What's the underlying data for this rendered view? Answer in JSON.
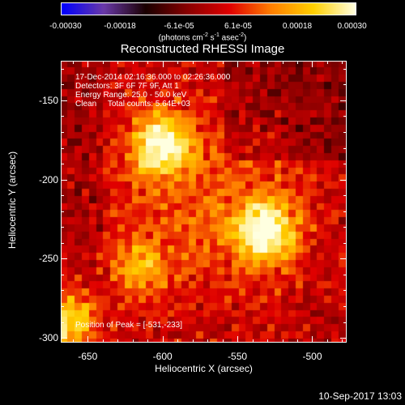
{
  "colorbar": {
    "ticks": [
      "-0.00030",
      "-0.00018",
      "-6.1e-05",
      "6.1e-05",
      "0.00018",
      "0.00030"
    ],
    "unit_prefix": "(photons cm",
    "unit_exp1": "-2",
    "unit_mid1": " s",
    "unit_exp2": "-1",
    "unit_mid2": " asec",
    "unit_exp3": "-2",
    "unit_suffix": ")",
    "min": -0.0003,
    "max": 0.0003,
    "colors": [
      "#0000ff",
      "#6a3aa8",
      "#1a0000",
      "#8a0000",
      "#e00000",
      "#ff8000",
      "#ffd000",
      "#ffffe0"
    ]
  },
  "chart_data": {
    "type": "heatmap",
    "title": "Reconstructed RHESSI Image",
    "xlabel": "Heliocentric X (arcsec)",
    "ylabel": "Heliocentric Y (arcsec)",
    "xlim": [
      -668,
      -477
    ],
    "ylim": [
      -303,
      -125
    ],
    "xticks": [
      "-650",
      "-600",
      "-550",
      "-500"
    ],
    "xtick_values": [
      -650,
      -600,
      -550,
      -500
    ],
    "yticks": [
      "-150",
      "-200",
      "-250",
      "-300"
    ],
    "ytick_values": [
      -150,
      -200,
      -250,
      -300
    ],
    "sources": [
      {
        "x": -601,
        "y": -178,
        "sigma": 13,
        "value": 0.00028
      },
      {
        "x": -531,
        "y": -233,
        "sigma": 14,
        "value": 0.0003
      },
      {
        "x": -616,
        "y": -257,
        "sigma": 11,
        "value": 0.00016
      },
      {
        "x": -663,
        "y": -290,
        "sigma": 13,
        "value": 0.00024
      }
    ],
    "peak": {
      "x": -531,
      "y": -233
    },
    "annotations": [
      "17-Dec-2014 02:16:36.000 to 02:26:36.000",
      "Detectors: 3F 6F 7F 9F, Att 1",
      "Energy Range: 25.0 - 50.0 keV",
      "Clean     Total counts: 5.64E+03"
    ],
    "peak_label": "Position of Peak = [-531,-233]"
  },
  "timestamp": "10-Sep-2017 13:03"
}
